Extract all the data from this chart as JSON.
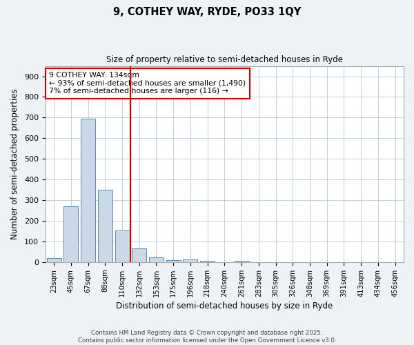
{
  "title_line1": "9, COTHEY WAY, RYDE, PO33 1QY",
  "title_line2": "Size of property relative to semi-detached houses in Ryde",
  "xlabel": "Distribution of semi-detached houses by size in Ryde",
  "ylabel": "Number of semi-detached properties",
  "bar_labels": [
    "23sqm",
    "45sqm",
    "67sqm",
    "88sqm",
    "110sqm",
    "132sqm",
    "153sqm",
    "175sqm",
    "196sqm",
    "218sqm",
    "240sqm",
    "261sqm",
    "283sqm",
    "305sqm",
    "326sqm",
    "348sqm",
    "369sqm",
    "391sqm",
    "413sqm",
    "434sqm",
    "456sqm"
  ],
  "bar_values": [
    20,
    270,
    695,
    350,
    155,
    65,
    22,
    11,
    13,
    5,
    0,
    7,
    0,
    0,
    0,
    0,
    0,
    0,
    0,
    0,
    0
  ],
  "bar_color": "#c9d9e8",
  "bar_edge_color": "#5a8ab0",
  "vline_x": 4.5,
  "vline_color": "#cc0000",
  "annotation_title": "9 COTHEY WAY: 134sqm",
  "annotation_line2": "← 93% of semi-detached houses are smaller (1,490)",
  "annotation_line3": "7% of semi-detached houses are larger (116) →",
  "annotation_box_color": "#cc0000",
  "ylim": [
    0,
    950
  ],
  "yticks": [
    0,
    100,
    200,
    300,
    400,
    500,
    600,
    700,
    800,
    900
  ],
  "footer_line1": "Contains HM Land Registry data © Crown copyright and database right 2025.",
  "footer_line2": "Contains public sector information licensed under the Open Government Licence v3.0.",
  "bg_color": "#eef2f7",
  "plot_bg_color": "#ffffff",
  "grid_color": "#c0cfe0"
}
